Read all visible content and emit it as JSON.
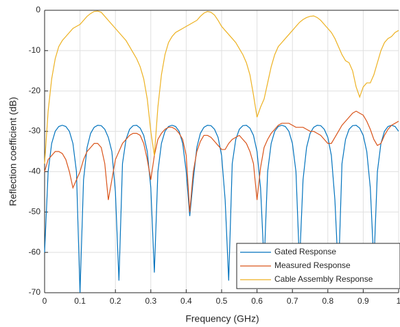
{
  "chart_data": {
    "type": "line",
    "xlabel": "Frequency (GHz)",
    "ylabel": "Reflection coefficient (dB)",
    "xlim": [
      0,
      1
    ],
    "ylim": [
      -70,
      0
    ],
    "xticks": [
      0,
      0.1,
      0.2,
      0.3,
      0.4,
      0.5,
      0.6,
      0.7,
      0.8,
      0.9,
      1
    ],
    "yticks": [
      0,
      -10,
      -20,
      -30,
      -40,
      -50,
      -60,
      -70
    ],
    "grid": true,
    "legend": "southeast",
    "x": [
      0,
      0.01,
      0.02,
      0.03,
      0.04,
      0.05,
      0.06,
      0.07,
      0.08,
      0.09,
      0.1,
      0.11,
      0.12,
      0.13,
      0.14,
      0.15,
      0.16,
      0.17,
      0.18,
      0.19,
      0.2,
      0.21,
      0.22,
      0.23,
      0.24,
      0.25,
      0.26,
      0.27,
      0.28,
      0.29,
      0.3,
      0.31,
      0.32,
      0.33,
      0.34,
      0.35,
      0.36,
      0.37,
      0.38,
      0.39,
      0.4,
      0.41,
      0.42,
      0.43,
      0.44,
      0.45,
      0.46,
      0.47,
      0.48,
      0.49,
      0.5,
      0.51,
      0.52,
      0.53,
      0.54,
      0.55,
      0.56,
      0.57,
      0.58,
      0.59,
      0.6,
      0.61,
      0.62,
      0.63,
      0.64,
      0.65,
      0.66,
      0.67,
      0.68,
      0.69,
      0.7,
      0.71,
      0.72,
      0.73,
      0.74,
      0.75,
      0.76,
      0.77,
      0.78,
      0.79,
      0.8,
      0.81,
      0.82,
      0.83,
      0.84,
      0.85,
      0.86,
      0.87,
      0.88,
      0.89,
      0.9,
      0.91,
      0.92,
      0.93,
      0.94,
      0.95,
      0.96,
      0.97,
      0.98,
      0.99,
      1
    ],
    "series": [
      {
        "name": "Gated Response",
        "color": "#0072bd",
        "values": [
          -60,
          -40,
          -33,
          -30,
          -28.8,
          -28.5,
          -28.8,
          -30,
          -33,
          -40,
          -70,
          -42,
          -34,
          -30.5,
          -29,
          -28.5,
          -28.6,
          -29.5,
          -31.5,
          -35,
          -45,
          -67,
          -38,
          -32,
          -29.5,
          -28.6,
          -28.5,
          -29.2,
          -31,
          -35,
          -44,
          -65,
          -40,
          -33,
          -30,
          -28.8,
          -28.5,
          -28.8,
          -30,
          -33,
          -40,
          -51,
          -42,
          -34,
          -30.5,
          -29,
          -28.5,
          -28.6,
          -29.5,
          -31.5,
          -36,
          -47,
          -67,
          -38,
          -32,
          -29.5,
          -28.6,
          -28.5,
          -29.2,
          -31,
          -35,
          -44,
          -63,
          -40,
          -33,
          -30,
          -28.8,
          -28.5,
          -28.8,
          -30,
          -33,
          -40,
          -63,
          -42,
          -34,
          -30.5,
          -29,
          -28.5,
          -28.6,
          -29.5,
          -31.5,
          -36,
          -47,
          -66,
          -38,
          -32,
          -29.5,
          -28.6,
          -28.5,
          -29.2,
          -31,
          -35,
          -44,
          -63,
          -40,
          -33,
          -30,
          -28.8,
          -28.5,
          -28.8,
          -30
        ]
      },
      {
        "name": "Measured Response",
        "color": "#d95319",
        "values": [
          -40,
          -37,
          -36,
          -35,
          -35,
          -35.5,
          -37,
          -40,
          -44,
          -42,
          -40,
          -37,
          -35,
          -34,
          -33,
          -33,
          -34,
          -38,
          -47,
          -42,
          -37,
          -35,
          -33,
          -32,
          -31,
          -30.5,
          -30.5,
          -31,
          -33,
          -37,
          -42,
          -36,
          -32,
          -30.5,
          -29.5,
          -29,
          -29,
          -29.5,
          -30.5,
          -32,
          -36,
          -50,
          -40,
          -35,
          -32.5,
          -31,
          -31,
          -31.5,
          -32.5,
          -33.5,
          -34.5,
          -34.5,
          -33,
          -32,
          -31.5,
          -31,
          -32,
          -33,
          -35,
          -38,
          -47,
          -39,
          -34,
          -32,
          -30.5,
          -29.5,
          -28.5,
          -28,
          -28,
          -28,
          -28.5,
          -29,
          -29,
          -29,
          -29.5,
          -30,
          -30,
          -30.5,
          -31,
          -32,
          -33,
          -33,
          -31.5,
          -30,
          -28.5,
          -27.5,
          -26.5,
          -25.5,
          -25,
          -25.5,
          -26,
          -27.5,
          -29.5,
          -32,
          -33.5,
          -33,
          -31,
          -29.5,
          -28.5,
          -28,
          -27.5
        ]
      },
      {
        "name": "Cable Assembly Response",
        "color": "#edb120",
        "values": [
          -38,
          -25,
          -17,
          -12,
          -9,
          -7.5,
          -6.5,
          -5.5,
          -4.5,
          -4,
          -3.5,
          -2.5,
          -1.5,
          -0.8,
          -0.3,
          -0.2,
          -0.5,
          -1.5,
          -2.5,
          -3.5,
          -4.5,
          -5.5,
          -6.5,
          -7.5,
          -9,
          -10.5,
          -12,
          -14,
          -17,
          -22,
          -30,
          -36,
          -24,
          -16,
          -11,
          -8,
          -6.5,
          -5.5,
          -5,
          -4.5,
          -4,
          -3.5,
          -3,
          -2.5,
          -1.5,
          -0.7,
          -0.3,
          -0.5,
          -1.2,
          -2.5,
          -4,
          -5,
          -6,
          -7,
          -8,
          -9.5,
          -11,
          -13,
          -16,
          -21,
          -26.5,
          -24,
          -22,
          -18,
          -14,
          -11,
          -9,
          -8,
          -7,
          -6,
          -5,
          -4,
          -3,
          -2.3,
          -1.8,
          -1.5,
          -1.4,
          -1.8,
          -2.5,
          -3.5,
          -4.5,
          -5.5,
          -7,
          -9,
          -11,
          -12.5,
          -13,
          -15,
          -19,
          -21.5,
          -19,
          -18,
          -18,
          -16,
          -13,
          -10,
          -8,
          -7,
          -6.5,
          -5.5,
          -5
        ]
      }
    ]
  }
}
